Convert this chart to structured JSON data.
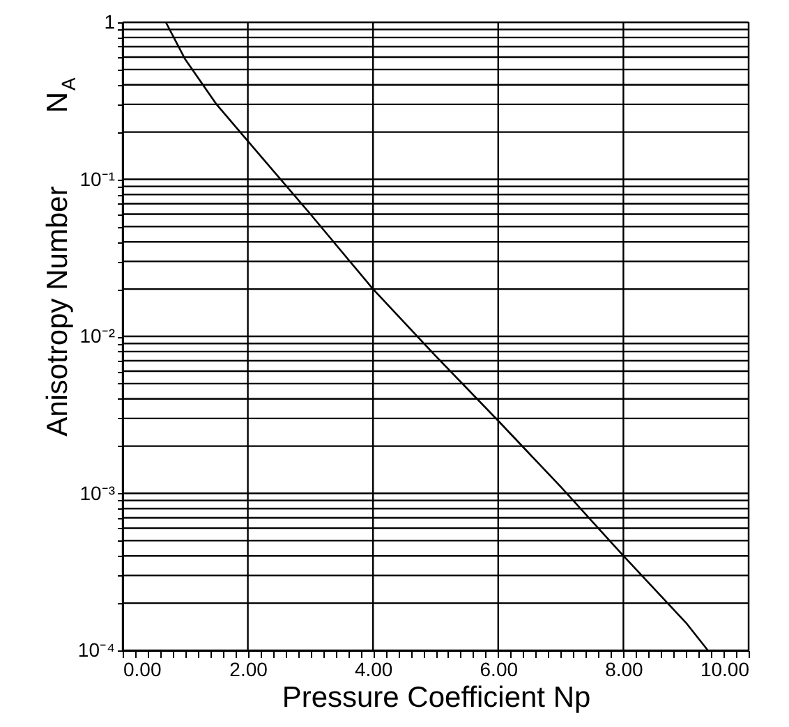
{
  "chart_data": {
    "type": "line",
    "xlabel": "Pressure Coefficient Np",
    "ylabel": "Anisotropy Number N$_{A}$",
    "x": [
      0.69,
      1.0,
      1.5,
      2.0,
      3.0,
      4.0,
      5.0,
      6.0,
      7.0,
      8.0,
      9.0,
      9.35
    ],
    "series": [
      {
        "color": "#000000",
        "values": [
          1.0,
          0.58,
          0.3,
          0.175,
          0.06,
          0.02,
          0.0075,
          0.0029,
          0.0011,
          0.0004,
          0.00015,
          0.0001
        ]
      }
    ],
    "log": "y",
    "grid": true,
    "marker": "none",
    "line_style": "solid",
    "xlim": [
      0,
      10
    ],
    "xticks": [
      {
        "value": 0,
        "label": "0.00"
      },
      {
        "value": 0.2,
        "label": null
      },
      {
        "value": 0.4,
        "label": null
      },
      {
        "value": 0.6,
        "label": null
      },
      {
        "value": 0.8,
        "label": null
      },
      {
        "value": 1.0,
        "label": null
      },
      {
        "value": 1.2,
        "label": null
      },
      {
        "value": 1.4,
        "label": null
      },
      {
        "value": 1.6,
        "label": null
      },
      {
        "value": 1.8,
        "label": null
      },
      {
        "value": 2,
        "label": "2.00"
      },
      {
        "value": 2.2,
        "label": null
      },
      {
        "value": 2.4,
        "label": null
      },
      {
        "value": 2.6,
        "label": null
      },
      {
        "value": 2.8,
        "label": null
      },
      {
        "value": 3.0,
        "label": null
      },
      {
        "value": 3.2,
        "label": null
      },
      {
        "value": 3.4,
        "label": null
      },
      {
        "value": 3.6,
        "label": null
      },
      {
        "value": 3.8,
        "label": null
      },
      {
        "value": 4,
        "label": "4.00"
      },
      {
        "value": 4.2,
        "label": null
      },
      {
        "value": 4.4,
        "label": null
      },
      {
        "value": 4.6,
        "label": null
      },
      {
        "value": 4.8,
        "label": null
      },
      {
        "value": 5.0,
        "label": null
      },
      {
        "value": 5.2,
        "label": null
      },
      {
        "value": 5.4,
        "label": null
      },
      {
        "value": 5.6,
        "label": null
      },
      {
        "value": 5.8,
        "label": null
      },
      {
        "value": 6,
        "label": "6.00"
      },
      {
        "value": 6.2,
        "label": null
      },
      {
        "value": 6.4,
        "label": null
      },
      {
        "value": 6.6,
        "label": null
      },
      {
        "value": 6.8,
        "label": null
      },
      {
        "value": 7.0,
        "label": null
      },
      {
        "value": 7.2,
        "label": null
      },
      {
        "value": 7.4,
        "label": null
      },
      {
        "value": 7.6,
        "label": null
      },
      {
        "value": 7.8,
        "label": null
      },
      {
        "value": 8,
        "label": "8.00"
      },
      {
        "value": 8.2,
        "label": null
      },
      {
        "value": 8.4,
        "label": null
      },
      {
        "value": 8.6,
        "label": null
      },
      {
        "value": 8.8,
        "label": null
      },
      {
        "value": 9.0,
        "label": null
      },
      {
        "value": 9.2,
        "label": null
      },
      {
        "value": 9.4,
        "label": null
      },
      {
        "value": 9.6,
        "label": null
      },
      {
        "value": 9.8,
        "label": null
      },
      {
        "value": 10,
        "label": "10.00"
      }
    ],
    "ylim": [
      0.0001,
      1
    ],
    "yticks": [
      {
        "value": 0.0001,
        "label": "10⁻⁴"
      },
      {
        "value": 0.0002,
        "label": null
      },
      {
        "value": 0.0003,
        "label": null
      },
      {
        "value": 0.0004,
        "label": null
      },
      {
        "value": 0.0005,
        "label": null
      },
      {
        "value": 0.0006,
        "label": null
      },
      {
        "value": 0.0007,
        "label": null
      },
      {
        "value": 0.0008,
        "label": null
      },
      {
        "value": 0.0009,
        "label": null
      },
      {
        "value": 0.001,
        "label": "10⁻³"
      },
      {
        "value": 0.002,
        "label": null
      },
      {
        "value": 0.003,
        "label": null
      },
      {
        "value": 0.004,
        "label": null
      },
      {
        "value": 0.005,
        "label": null
      },
      {
        "value": 0.006,
        "label": null
      },
      {
        "value": 0.007,
        "label": null
      },
      {
        "value": 0.008,
        "label": null
      },
      {
        "value": 0.009,
        "label": null
      },
      {
        "value": 0.01,
        "label": "10⁻²"
      },
      {
        "value": 0.02,
        "label": null
      },
      {
        "value": 0.03,
        "label": null
      },
      {
        "value": 0.04,
        "label": null
      },
      {
        "value": 0.05,
        "label": null
      },
      {
        "value": 0.06,
        "label": null
      },
      {
        "value": 0.07,
        "label": null
      },
      {
        "value": 0.08,
        "label": null
      },
      {
        "value": 0.09,
        "label": null
      },
      {
        "value": 0.1,
        "label": "10⁻¹"
      },
      {
        "value": 0.2,
        "label": null
      },
      {
        "value": 0.3,
        "label": null
      },
      {
        "value": 0.4,
        "label": null
      },
      {
        "value": 0.5,
        "label": null
      },
      {
        "value": 0.6,
        "label": null
      },
      {
        "value": 0.7,
        "label": null
      },
      {
        "value": 0.8,
        "label": null
      },
      {
        "value": 0.9,
        "label": null
      },
      {
        "value": 1,
        "label": "1"
      }
    ]
  }
}
